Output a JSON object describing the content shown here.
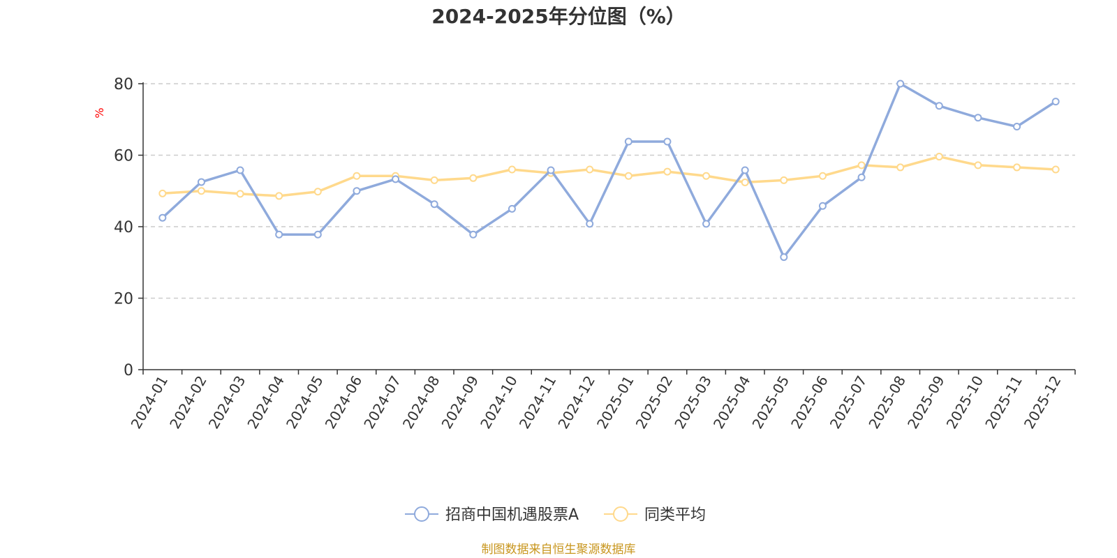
{
  "chart_data": {
    "type": "line",
    "title": "2024-2025年分位图（%）",
    "ylabel": "%",
    "xlabel": "",
    "ylim": [
      0,
      80
    ],
    "yticks": [
      0,
      20,
      40,
      60,
      80
    ],
    "grid": true,
    "legend_position": "bottom",
    "categories": [
      "2024-01",
      "2024-02",
      "2024-03",
      "2024-04",
      "2024-05",
      "2024-06",
      "2024-07",
      "2024-08",
      "2024-09",
      "2024-10",
      "2024-11",
      "2024-12",
      "2025-01",
      "2025-02",
      "2025-03",
      "2025-04",
      "2025-05",
      "2025-06",
      "2025-07",
      "2025-08",
      "2025-09",
      "2025-10",
      "2025-11",
      "2025-12"
    ],
    "series": [
      {
        "name": "招商中国机遇股票A",
        "color": "#8faadc",
        "values": [
          42.5,
          52.5,
          55.8,
          37.8,
          37.8,
          50.0,
          53.3,
          46.3,
          37.8,
          45.0,
          55.8,
          40.8,
          63.8,
          63.8,
          40.8,
          55.8,
          31.5,
          45.8,
          53.8,
          80.0,
          73.8,
          70.5,
          68.0,
          75.0
        ]
      },
      {
        "name": "同类平均",
        "color": "#ffd98c",
        "values": [
          49.3,
          50.0,
          49.2,
          48.6,
          49.8,
          54.2,
          54.2,
          53.0,
          53.6,
          56.0,
          55.0,
          56.0,
          54.2,
          55.4,
          54.2,
          52.4,
          53.0,
          54.2,
          57.2,
          56.6,
          59.6,
          57.2,
          56.6,
          56.0
        ]
      }
    ],
    "source_note": "制图数据来自恒生聚源数据库"
  },
  "colors": {
    "axis": "#333333",
    "grid": "#cccccc",
    "ylabel": "#ff0000",
    "source": "#c8961e"
  }
}
